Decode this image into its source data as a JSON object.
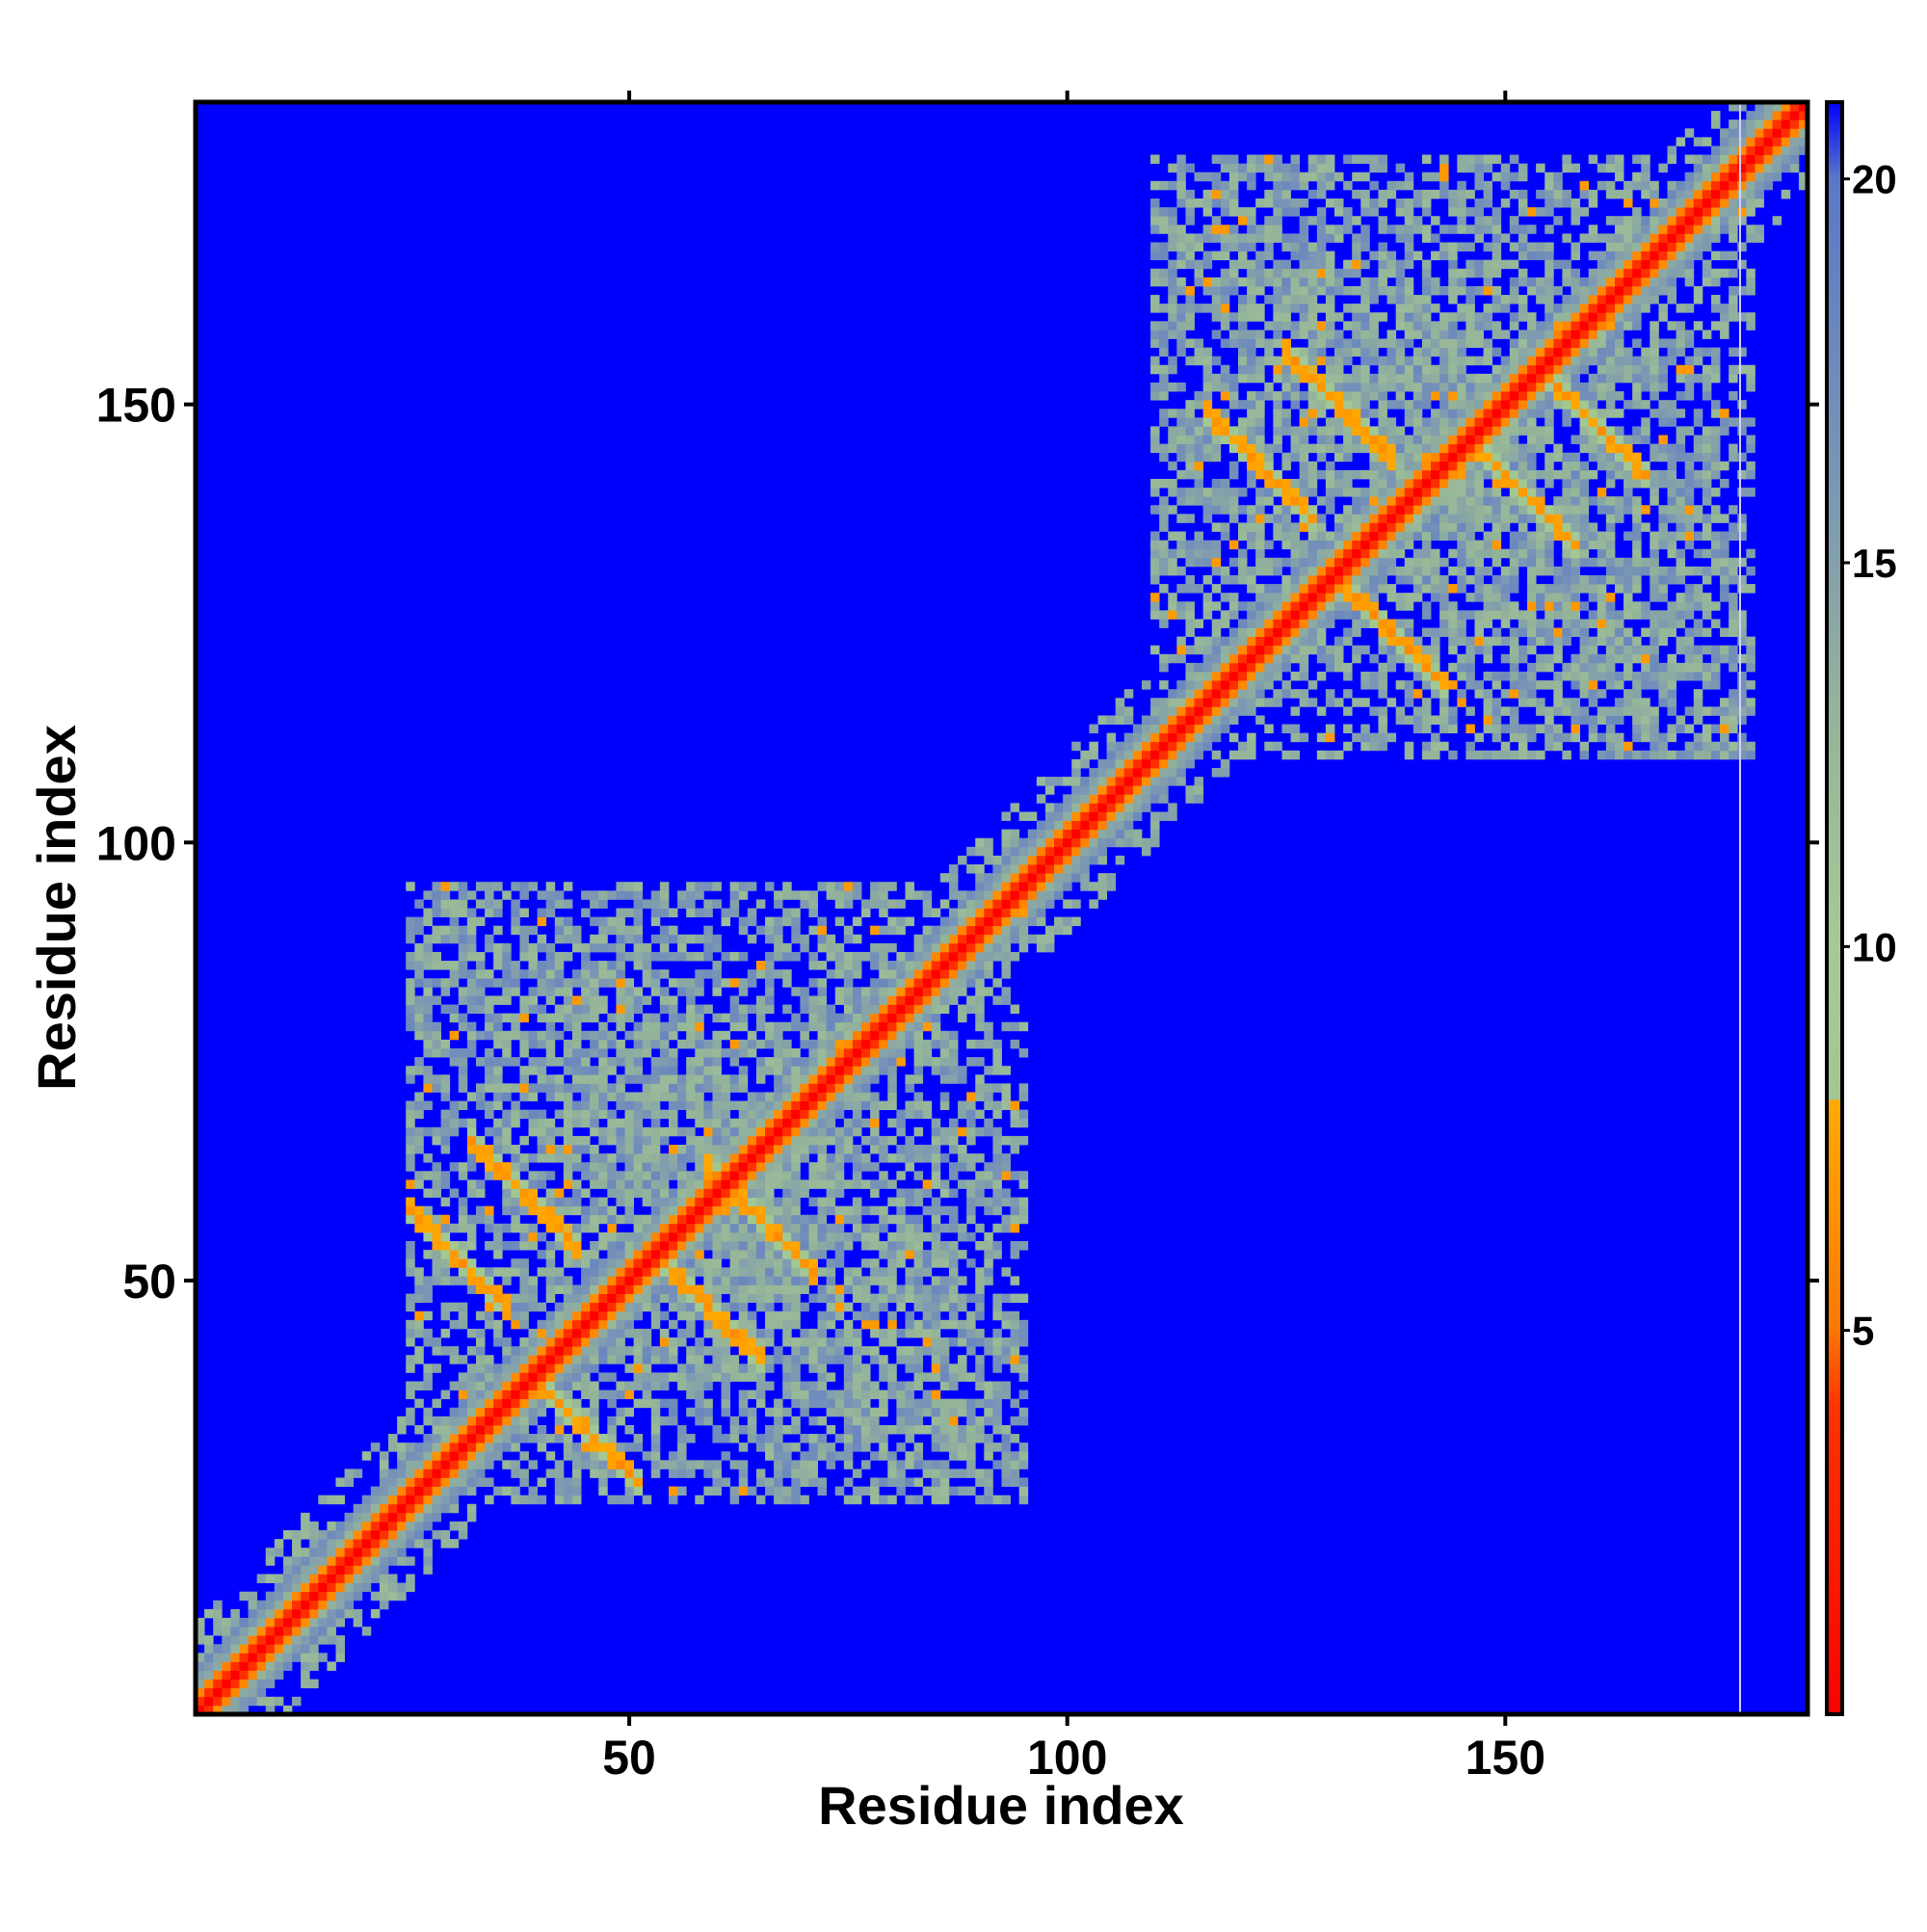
{
  "chart_data": {
    "type": "heatmap",
    "title": "",
    "xlabel": "Residue index",
    "ylabel": "Residue index",
    "xlim": [
      1,
      184
    ],
    "ylim": [
      1,
      184
    ],
    "xticks": [
      50,
      100,
      150
    ],
    "yticks": [
      50,
      100,
      150
    ],
    "x_tick_labels": [
      "50",
      "100",
      "150"
    ],
    "y_tick_labels": [
      "50",
      "100",
      "150"
    ],
    "grid": false,
    "legend": "none",
    "colorbar": {
      "placement": "right",
      "range": [
        0,
        21
      ],
      "ticks": [
        5,
        10,
        15,
        20
      ],
      "tick_labels": [
        "5",
        "10",
        "15",
        "20"
      ],
      "stops": [
        {
          "value": 0,
          "color": "#ff0000"
        },
        {
          "value": 4,
          "color": "#ff3300"
        },
        {
          "value": 5,
          "color": "#ff7700"
        },
        {
          "value": 8,
          "color": "#ffaa00"
        },
        {
          "value": 8.01,
          "color": "#a0c890"
        },
        {
          "value": 10,
          "color": "#a8c896"
        },
        {
          "value": 13,
          "color": "#94b49a"
        },
        {
          "value": 16,
          "color": "#7b96b4"
        },
        {
          "value": 20,
          "color": "#5a78c8"
        },
        {
          "value": 21,
          "color": "#0000ff"
        }
      ]
    },
    "background_value": 21,
    "background_color": "#0000ff",
    "description_values": {
      "diagonal_distance": 3.8,
      "helix_contact_distance": 6,
      "domain_contact_distance": 12
    },
    "domains": [
      {
        "range": [
          25,
          95
        ],
        "helix_contacts": [
          [
            30,
            53
          ],
          [
            45,
            33
          ],
          [
            38,
            60
          ],
          [
            59,
            47
          ],
          [
            65,
            57
          ]
        ]
      },
      {
        "range": [
          110,
          178
        ],
        "helix_contacts": [
          [
            122,
            143
          ],
          [
            137,
            124
          ],
          [
            131,
            150
          ],
          [
            152,
            140
          ],
          [
            160,
            148
          ]
        ]
      }
    ]
  }
}
